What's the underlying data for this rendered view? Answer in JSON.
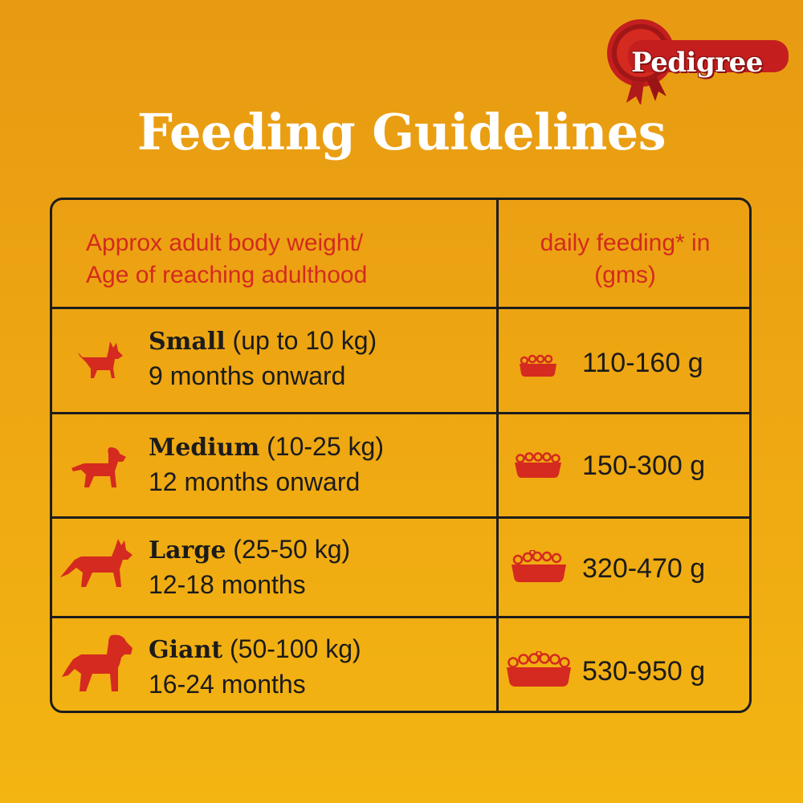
{
  "brand": {
    "name": "Pedigree",
    "color": "#D42A1F"
  },
  "title": "Feeding Guidelines",
  "table": {
    "header_left_line1": "Approx adult body weight/",
    "header_left_line2": "Age of reaching adulthood",
    "header_right_line1": "daily feeding* in",
    "header_right_line2": "(gms)",
    "rows": [
      {
        "size": "Small",
        "weight": "(up to 10 kg)",
        "age": "9 months onward",
        "amount": "110-160 g",
        "icon": "small-dog-icon"
      },
      {
        "size": "Medium",
        "weight": "(10-25 kg)",
        "age": "12 months onward",
        "amount": "150-300 g",
        "icon": "medium-dog-icon"
      },
      {
        "size": "Large",
        "weight": "(25-50 kg)",
        "age": "12-18 months",
        "amount": "320-470 g",
        "icon": "large-dog-icon"
      },
      {
        "size": "Giant",
        "weight": "(50-100 kg)",
        "age": "16-24 months",
        "amount": "530-950 g",
        "icon": "giant-dog-icon"
      }
    ]
  }
}
